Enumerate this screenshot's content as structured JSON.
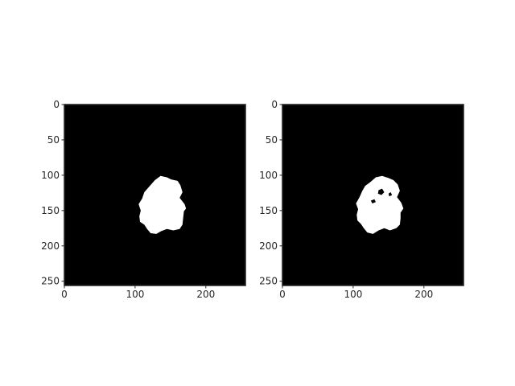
{
  "chart_data": [
    {
      "type": "image",
      "title": "",
      "xlabel": "",
      "ylabel": "",
      "image_size": [
        256,
        256
      ],
      "xlim": [
        0,
        256
      ],
      "ylim": [
        256,
        0
      ],
      "xticks": [
        0,
        100,
        200
      ],
      "yticks": [
        0,
        50,
        100,
        150,
        200,
        250
      ],
      "xtick_labels": [
        "0",
        "100",
        "200"
      ],
      "ytick_labels": [
        "0",
        "50",
        "100",
        "150",
        "200",
        "250"
      ],
      "colormap": "gray",
      "background_color": "#000000",
      "foreground_color": "#ffffff",
      "mask_region": {
        "x_range": [
          104,
          173
        ],
        "y_range": [
          101,
          183
        ],
        "outline": [
          [
            128,
            107
          ],
          [
            136,
            101
          ],
          [
            145,
            103
          ],
          [
            151,
            106
          ],
          [
            160,
            108
          ],
          [
            164,
            114
          ],
          [
            167,
            124
          ],
          [
            163,
            132
          ],
          [
            170,
            141
          ],
          [
            172,
            147
          ],
          [
            169,
            151
          ],
          [
            168,
            160
          ],
          [
            167,
            170
          ],
          [
            163,
            176
          ],
          [
            154,
            178
          ],
          [
            145,
            176
          ],
          [
            137,
            179
          ],
          [
            130,
            183
          ],
          [
            122,
            182
          ],
          [
            117,
            176
          ],
          [
            113,
            170
          ],
          [
            107,
            166
          ],
          [
            106,
            158
          ],
          [
            108,
            150
          ],
          [
            105,
            141
          ],
          [
            110,
            133
          ],
          [
            113,
            124
          ],
          [
            120,
            116
          ]
        ],
        "holes": []
      }
    },
    {
      "type": "image",
      "title": "",
      "xlabel": "",
      "ylabel": "",
      "image_size": [
        256,
        256
      ],
      "xlim": [
        0,
        256
      ],
      "ylim": [
        256,
        0
      ],
      "xticks": [
        0,
        100,
        200
      ],
      "yticks": [
        0,
        50,
        100,
        150,
        200,
        250
      ],
      "xtick_labels": [
        "0",
        "100",
        "200"
      ],
      "ytick_labels": [
        "0",
        "50",
        "100",
        "150",
        "200",
        "250"
      ],
      "colormap": "gray",
      "background_color": "#000000",
      "foreground_color": "#ffffff",
      "mask_region": {
        "x_range": [
          104,
          173
        ],
        "y_range": [
          101,
          183
        ],
        "outline": [
          [
            124,
            110
          ],
          [
            132,
            103
          ],
          [
            141,
            101
          ],
          [
            150,
            104
          ],
          [
            157,
            107
          ],
          [
            163,
            113
          ],
          [
            166,
            122
          ],
          [
            162,
            131
          ],
          [
            168,
            139
          ],
          [
            171,
            147
          ],
          [
            167,
            153
          ],
          [
            167,
            161
          ],
          [
            166,
            170
          ],
          [
            161,
            175
          ],
          [
            152,
            178
          ],
          [
            144,
            175
          ],
          [
            136,
            178
          ],
          [
            128,
            183
          ],
          [
            120,
            181
          ],
          [
            115,
            175
          ],
          [
            111,
            169
          ],
          [
            106,
            164
          ],
          [
            105,
            156
          ],
          [
            107,
            148
          ],
          [
            104,
            140
          ],
          [
            109,
            131
          ],
          [
            113,
            122
          ],
          [
            117,
            115
          ]
        ],
        "holes": [
          [
            [
              136,
              121
            ],
            [
              141,
              119
            ],
            [
              144,
              124
            ],
            [
              140,
              128
            ],
            [
              135,
              126
            ]
          ],
          [
            [
              125,
              136
            ],
            [
              130,
              134
            ],
            [
              132,
              138
            ],
            [
              127,
              140
            ]
          ],
          [
            [
              150,
              126
            ],
            [
              153,
              124
            ],
            [
              155,
              128
            ],
            [
              151,
              130
            ]
          ]
        ]
      }
    }
  ]
}
